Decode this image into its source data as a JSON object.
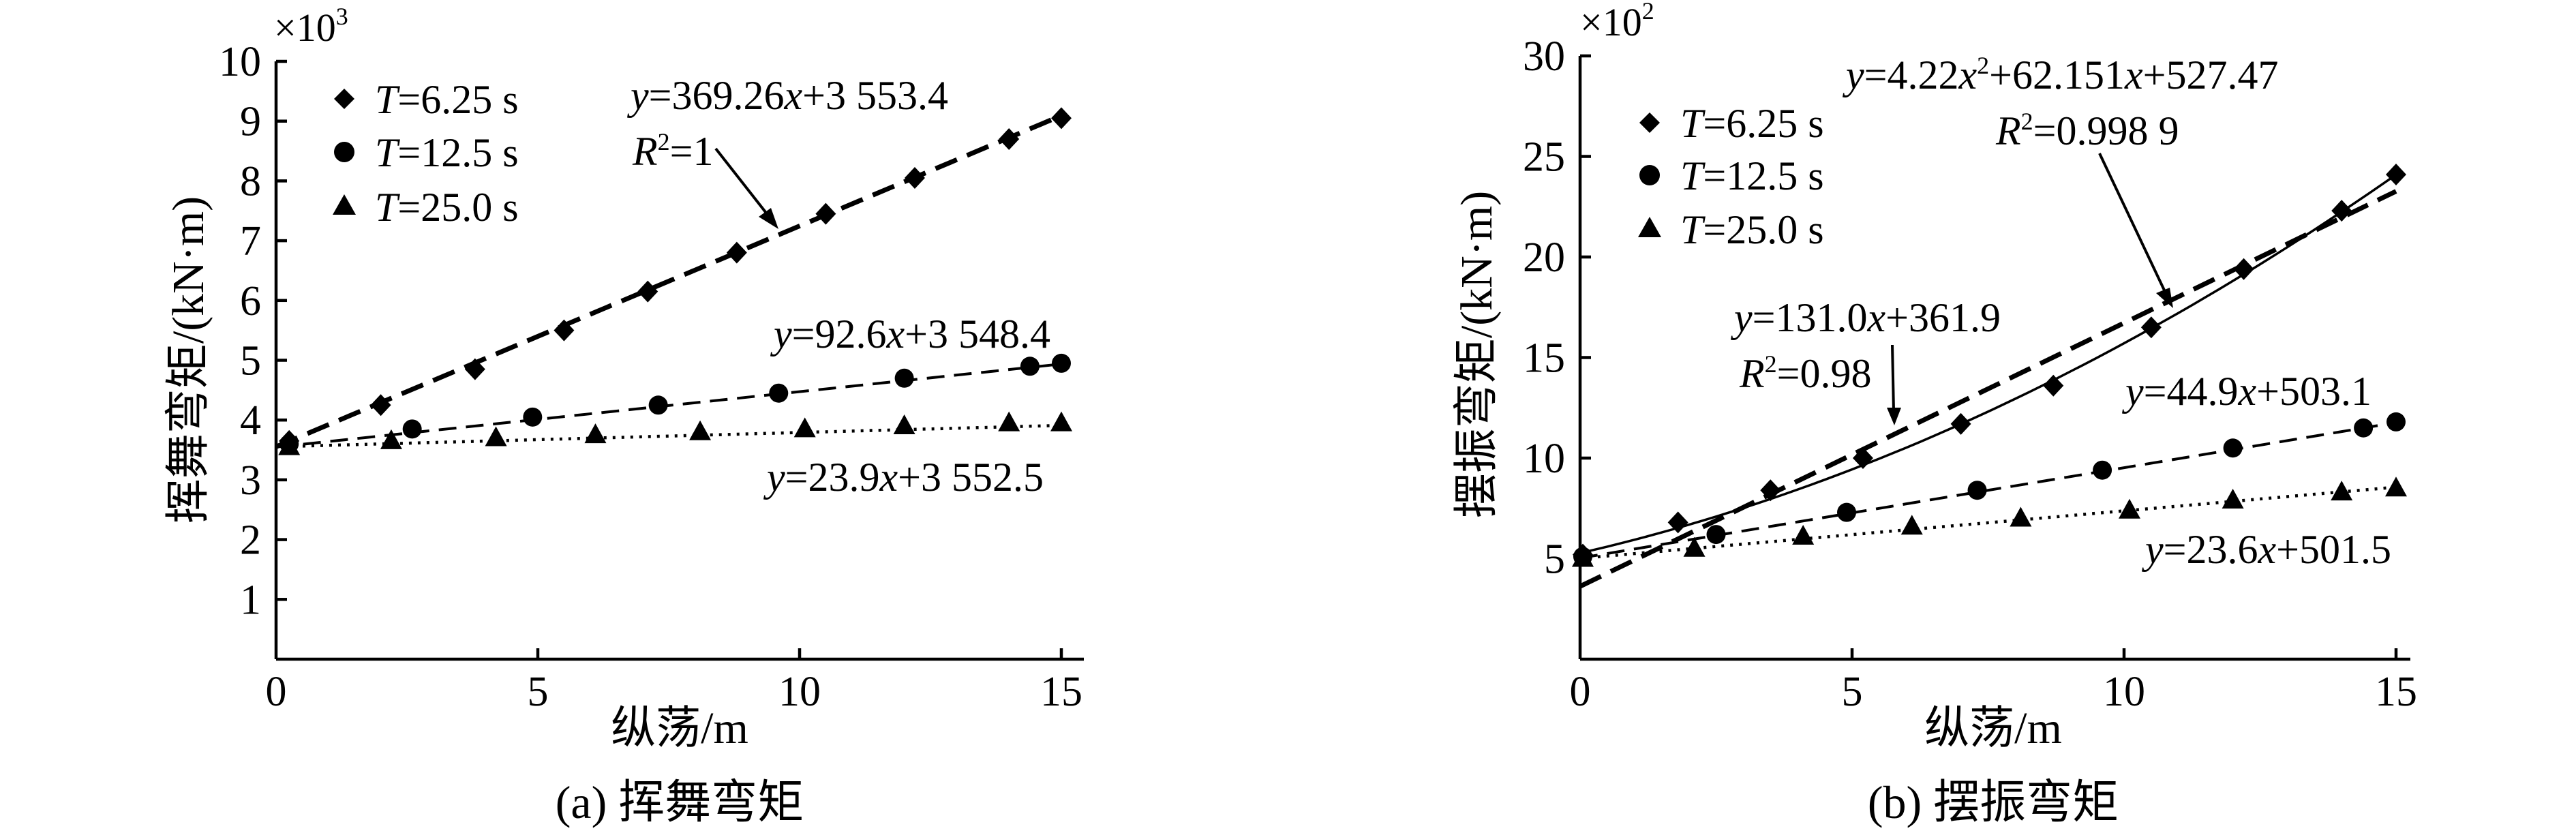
{
  "chart_data": [
    {
      "type": "scatter",
      "caption": "(a) 挥舞弯矩",
      "multiplier_text": "×10",
      "multiplier_exp": "3",
      "xlabel": "纵荡/m",
      "ylabel": "挥舞弯矩/(kN·m)",
      "xlim": [
        0,
        15
      ],
      "ylim": [
        0,
        10000
      ],
      "x_ticks": [
        {
          "v": 0,
          "label": "0"
        },
        {
          "v": 5,
          "label": "5"
        },
        {
          "v": 10,
          "label": "10"
        },
        {
          "v": 15,
          "label": "15"
        }
      ],
      "y_ticks": [
        {
          "v": 1000,
          "label": "1"
        },
        {
          "v": 2000,
          "label": "2"
        },
        {
          "v": 3000,
          "label": "3"
        },
        {
          "v": 4000,
          "label": "4"
        },
        {
          "v": 5000,
          "label": "5"
        },
        {
          "v": 6000,
          "label": "6"
        },
        {
          "v": 7000,
          "label": "7"
        },
        {
          "v": 8000,
          "label": "8"
        },
        {
          "v": 9000,
          "label": "9"
        },
        {
          "v": 10000,
          "label": "10"
        }
      ],
      "legend_position": "top-left",
      "series": [
        {
          "name_var": "T",
          "name_rest": "=6.25 s",
          "marker": "diamond",
          "x": [
            0.25,
            2.0,
            3.8,
            5.5,
            7.1,
            8.8,
            10.5,
            12.2,
            14.0,
            15.0
          ],
          "y": [
            3650,
            4250,
            4850,
            5500,
            6150,
            6800,
            7450,
            8050,
            8700,
            9050
          ]
        },
        {
          "name_var": "T",
          "name_rest": "=12.5 s",
          "marker": "circle",
          "x": [
            0.25,
            2.6,
            4.9,
            7.3,
            9.6,
            12.0,
            14.4,
            15.0
          ],
          "y": [
            3600,
            3850,
            4050,
            4250,
            4450,
            4700,
            4900,
            4950
          ]
        },
        {
          "name_var": "T",
          "name_rest": "=25.0 s",
          "marker": "triangle",
          "x": [
            0.25,
            2.2,
            4.2,
            6.1,
            8.1,
            10.1,
            12.0,
            14.0,
            15.0
          ],
          "y": [
            3550,
            3650,
            3700,
            3750,
            3800,
            3850,
            3900,
            3950,
            3950
          ]
        }
      ],
      "fits": [
        {
          "type": "linear",
          "slope": 369.26,
          "intercept": 3553.4,
          "style": "dashed-heavy",
          "equation": {
            "lhs": "y",
            "rhs_pre": "=369.26",
            "var": "x",
            "rhs_post": "+3 553.4"
          },
          "r2": {
            "sym": "R",
            "sup": "2",
            "rest": "=1"
          }
        },
        {
          "type": "linear",
          "slope": 92.6,
          "intercept": 3548.4,
          "style": "dashed-light",
          "equation": {
            "lhs": "y",
            "rhs_pre": "=92.6",
            "var": "x",
            "rhs_post": "+3 548.4"
          }
        },
        {
          "type": "linear",
          "slope": 23.9,
          "intercept": 3552.5,
          "style": "dotted",
          "equation": {
            "lhs": "y",
            "rhs_pre": "=23.9",
            "var": "x",
            "rhs_post": "+3 552.5"
          }
        }
      ]
    },
    {
      "type": "scatter",
      "caption": "(b) 摆振弯矩",
      "multiplier_text": "×10",
      "multiplier_exp": "2",
      "xlabel": "纵荡/m",
      "ylabel": "摆振弯矩/(kN·m)",
      "xlim": [
        0,
        15
      ],
      "ylim": [
        0,
        3000
      ],
      "x_ticks": [
        {
          "v": 0,
          "label": "0"
        },
        {
          "v": 5,
          "label": "5"
        },
        {
          "v": 10,
          "label": "10"
        },
        {
          "v": 15,
          "label": "15"
        }
      ],
      "y_ticks": [
        {
          "v": 500,
          "label": "5"
        },
        {
          "v": 1000,
          "label": "10"
        },
        {
          "v": 1500,
          "label": "15"
        },
        {
          "v": 2000,
          "label": "20"
        },
        {
          "v": 2500,
          "label": "25"
        },
        {
          "v": 3000,
          "label": "30"
        }
      ],
      "legend_position": "top-left",
      "series": [
        {
          "name_var": "T",
          "name_rest": "=6.25 s",
          "marker": "diamond",
          "x": [
            0.05,
            1.8,
            3.5,
            5.2,
            7.0,
            8.7,
            10.5,
            12.2,
            14.0,
            15.0
          ],
          "y": [
            520,
            680,
            840,
            1000,
            1170,
            1360,
            1650,
            1940,
            2230,
            2410
          ]
        },
        {
          "name_var": "T",
          "name_rest": "=12.5 s",
          "marker": "circle",
          "x": [
            0.05,
            2.5,
            4.9,
            7.3,
            9.6,
            12.0,
            14.4,
            15.0
          ],
          "y": [
            510,
            620,
            730,
            840,
            940,
            1050,
            1150,
            1180
          ]
        },
        {
          "name_var": "T",
          "name_rest": "=25.0 s",
          "marker": "triangle",
          "x": [
            0.05,
            2.1,
            4.1,
            6.1,
            8.1,
            10.1,
            12.0,
            14.0,
            15.0
          ],
          "y": [
            500,
            550,
            610,
            660,
            700,
            740,
            790,
            830,
            850
          ]
        }
      ],
      "fits": [
        {
          "type": "quadratic",
          "a": 4.22,
          "b": 62.151,
          "c": 527.47,
          "style": "solid",
          "equation": {
            "lhs": "y",
            "rhs_pre": "=4.22",
            "var": "x",
            "sup": "2",
            "rhs_mid": "+62.151",
            "var2": "x",
            "rhs_post": "+527.47"
          },
          "r2": {
            "sym": "R",
            "sup": "2",
            "rest": "=0.998 9"
          }
        },
        {
          "type": "linear",
          "slope": 131.0,
          "intercept": 361.9,
          "style": "dashed-heavy",
          "equation": {
            "lhs": "y",
            "rhs_pre": "=131.0",
            "var": "x",
            "rhs_post": "+361.9"
          },
          "r2": {
            "sym": "R",
            "sup": "2",
            "rest": "=0.98"
          }
        },
        {
          "type": "linear",
          "slope": 44.9,
          "intercept": 503.1,
          "style": "dashed-light",
          "equation": {
            "lhs": "y",
            "rhs_pre": "=44.9",
            "var": "x",
            "rhs_post": "+503.1"
          }
        },
        {
          "type": "linear",
          "slope": 23.6,
          "intercept": 501.5,
          "style": "dotted",
          "equation": {
            "lhs": "y",
            "rhs_pre": "=23.6",
            "var": "x",
            "rhs_post": "+501.5"
          }
        }
      ]
    }
  ]
}
